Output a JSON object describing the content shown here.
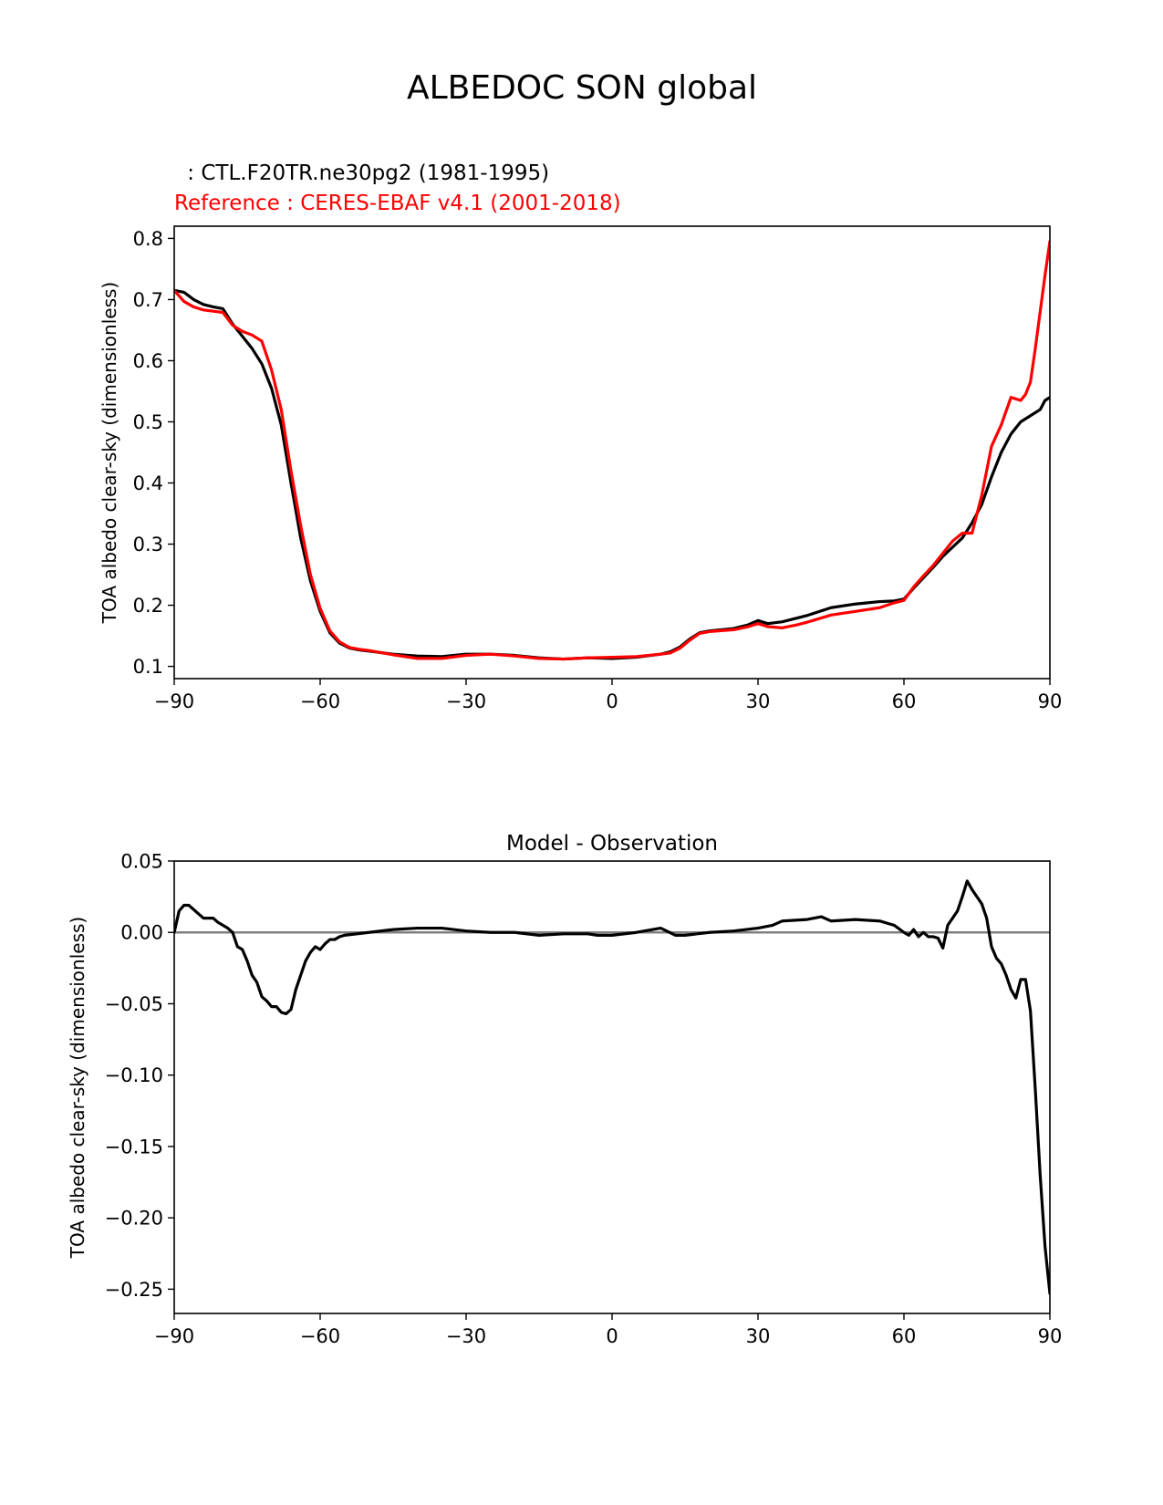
{
  "figure": {
    "title": "ALBEDOC SON global",
    "test_label": " : CTL.F20TR.ne30pg2 (1981-1995)",
    "reference_label": "Reference : CERES-EBAF v4.1 (2001-2018)",
    "colors": {
      "test": "#000000",
      "reference": "#ff0000",
      "zero_line": "#808080",
      "text": "#000000"
    }
  },
  "chart_data": [
    {
      "type": "line",
      "title": "",
      "xlabel": "",
      "ylabel": "TOA albedo clear-sky (dimensionless)",
      "xlim": [
        -90,
        90
      ],
      "ylim": [
        0.08,
        0.82
      ],
      "xticks": [
        -90,
        -60,
        -30,
        0,
        30,
        60,
        90
      ],
      "xtick_labels": [
        "−90",
        "−60",
        "−30",
        "0",
        "30",
        "60",
        "90"
      ],
      "yticks": [
        0.1,
        0.2,
        0.3,
        0.4,
        0.5,
        0.6,
        0.7,
        0.8
      ],
      "ytick_labels": [
        "0.1",
        "0.2",
        "0.3",
        "0.4",
        "0.5",
        "0.6",
        "0.7",
        "0.8"
      ],
      "grid": false,
      "series": [
        {
          "color": "#000000",
          "x": [
            -90,
            -88,
            -86,
            -84,
            -82,
            -80,
            -78,
            -76,
            -74,
            -72,
            -70,
            -68,
            -66,
            -64,
            -62,
            -60,
            -58,
            -56,
            -54,
            -52,
            -50,
            -45,
            -40,
            -35,
            -30,
            -25,
            -20,
            -15,
            -10,
            -5,
            0,
            5,
            10,
            12,
            14,
            16,
            18,
            20,
            25,
            28,
            30,
            32,
            35,
            40,
            45,
            50,
            55,
            58,
            60,
            62,
            64,
            66,
            68,
            70,
            72,
            74,
            76,
            78,
            80,
            82,
            84,
            86,
            88,
            89,
            90
          ],
          "y": [
            0.715,
            0.712,
            0.7,
            0.692,
            0.688,
            0.685,
            0.66,
            0.64,
            0.62,
            0.595,
            0.555,
            0.495,
            0.4,
            0.31,
            0.24,
            0.19,
            0.155,
            0.138,
            0.13,
            0.127,
            0.125,
            0.12,
            0.117,
            0.116,
            0.12,
            0.12,
            0.118,
            0.114,
            0.112,
            0.114,
            0.113,
            0.115,
            0.12,
            0.124,
            0.132,
            0.145,
            0.155,
            0.158,
            0.162,
            0.168,
            0.175,
            0.17,
            0.173,
            0.183,
            0.196,
            0.202,
            0.206,
            0.207,
            0.21,
            0.228,
            0.245,
            0.262,
            0.28,
            0.295,
            0.31,
            0.335,
            0.365,
            0.41,
            0.45,
            0.48,
            0.5,
            0.51,
            0.52,
            0.535,
            0.54
          ]
        },
        {
          "color": "#ff0000",
          "x": [
            -90,
            -88,
            -86,
            -84,
            -82,
            -80,
            -78,
            -76,
            -74,
            -72,
            -70,
            -68,
            -66,
            -64,
            -62,
            -60,
            -58,
            -56,
            -54,
            -52,
            -50,
            -45,
            -40,
            -35,
            -30,
            -25,
            -20,
            -15,
            -10,
            -5,
            0,
            5,
            10,
            12,
            14,
            16,
            18,
            20,
            25,
            28,
            30,
            32,
            35,
            38,
            40,
            45,
            50,
            55,
            58,
            60,
            62,
            64,
            66,
            68,
            70,
            72,
            74,
            76,
            78,
            80,
            82,
            84,
            85,
            86,
            87,
            88,
            89,
            90
          ],
          "y": [
            0.715,
            0.697,
            0.688,
            0.683,
            0.681,
            0.679,
            0.658,
            0.648,
            0.642,
            0.632,
            0.585,
            0.52,
            0.42,
            0.33,
            0.25,
            0.195,
            0.158,
            0.14,
            0.131,
            0.128,
            0.126,
            0.119,
            0.113,
            0.113,
            0.118,
            0.12,
            0.117,
            0.113,
            0.112,
            0.114,
            0.115,
            0.116,
            0.12,
            0.122,
            0.13,
            0.143,
            0.154,
            0.157,
            0.16,
            0.165,
            0.17,
            0.165,
            0.163,
            0.168,
            0.172,
            0.184,
            0.19,
            0.196,
            0.204,
            0.208,
            0.23,
            0.248,
            0.265,
            0.285,
            0.305,
            0.318,
            0.318,
            0.38,
            0.46,
            0.495,
            0.54,
            0.535,
            0.545,
            0.565,
            0.62,
            0.68,
            0.74,
            0.795
          ]
        }
      ]
    },
    {
      "type": "line",
      "title": "Model - Observation",
      "xlabel": "",
      "ylabel": "TOA albedo clear-sky (dimensionless)",
      "xlim": [
        -90,
        90
      ],
      "ylim": [
        -0.267,
        0.05
      ],
      "xticks": [
        -90,
        -60,
        -30,
        0,
        30,
        60,
        90
      ],
      "xtick_labels": [
        "−90",
        "−60",
        "−30",
        "0",
        "30",
        "60",
        "90"
      ],
      "yticks": [
        0.05,
        0.0,
        -0.05,
        -0.1,
        -0.15,
        -0.2,
        -0.25
      ],
      "ytick_labels": [
        "0.05",
        "0.00",
        "−0.05",
        "−0.10",
        "−0.15",
        "−0.20",
        "−0.25"
      ],
      "grid": false,
      "zero_line": 0,
      "series": [
        {
          "color": "#000000",
          "x": [
            -90,
            -89,
            -88,
            -87,
            -86,
            -85,
            -84,
            -83,
            -82,
            -81,
            -80,
            -79,
            -78,
            -77,
            -76,
            -75,
            -74,
            -73,
            -72,
            -71,
            -70,
            -69,
            -68,
            -67,
            -66,
            -65,
            -64,
            -63,
            -62,
            -61,
            -60,
            -59,
            -58,
            -57,
            -56,
            -55,
            -50,
            -45,
            -40,
            -35,
            -30,
            -25,
            -20,
            -15,
            -10,
            -5,
            -3,
            0,
            5,
            10,
            13,
            15,
            20,
            25,
            30,
            33,
            35,
            40,
            43,
            45,
            50,
            55,
            57,
            58,
            60,
            61,
            62,
            63,
            64,
            65,
            66,
            67,
            68,
            69,
            70,
            71,
            72,
            73,
            74,
            75,
            76,
            77,
            78,
            79,
            80,
            81,
            82,
            83,
            84,
            85,
            86,
            87,
            88,
            89,
            90
          ],
          "y": [
            0.0,
            0.015,
            0.019,
            0.019,
            0.016,
            0.013,
            0.01,
            0.01,
            0.01,
            0.007,
            0.005,
            0.003,
            0.0,
            -0.01,
            -0.012,
            -0.02,
            -0.03,
            -0.035,
            -0.045,
            -0.048,
            -0.052,
            -0.052,
            -0.056,
            -0.057,
            -0.054,
            -0.04,
            -0.03,
            -0.02,
            -0.014,
            -0.01,
            -0.012,
            -0.008,
            -0.005,
            -0.005,
            -0.003,
            -0.002,
            0.0,
            0.002,
            0.003,
            0.003,
            0.001,
            0.0,
            0.0,
            -0.002,
            -0.001,
            -0.001,
            -0.002,
            -0.002,
            0.0,
            0.003,
            -0.002,
            -0.002,
            0.0,
            0.001,
            0.003,
            0.005,
            0.008,
            0.009,
            0.011,
            0.008,
            0.009,
            0.008,
            0.006,
            0.005,
            0.0,
            -0.002,
            0.002,
            -0.003,
            0.0,
            -0.003,
            -0.003,
            -0.004,
            -0.011,
            0.005,
            0.01,
            0.015,
            0.025,
            0.036,
            0.03,
            0.025,
            0.02,
            0.01,
            -0.01,
            -0.018,
            -0.022,
            -0.03,
            -0.04,
            -0.046,
            -0.033,
            -0.033,
            -0.055,
            -0.11,
            -0.17,
            -0.22,
            -0.253
          ]
        }
      ]
    }
  ]
}
